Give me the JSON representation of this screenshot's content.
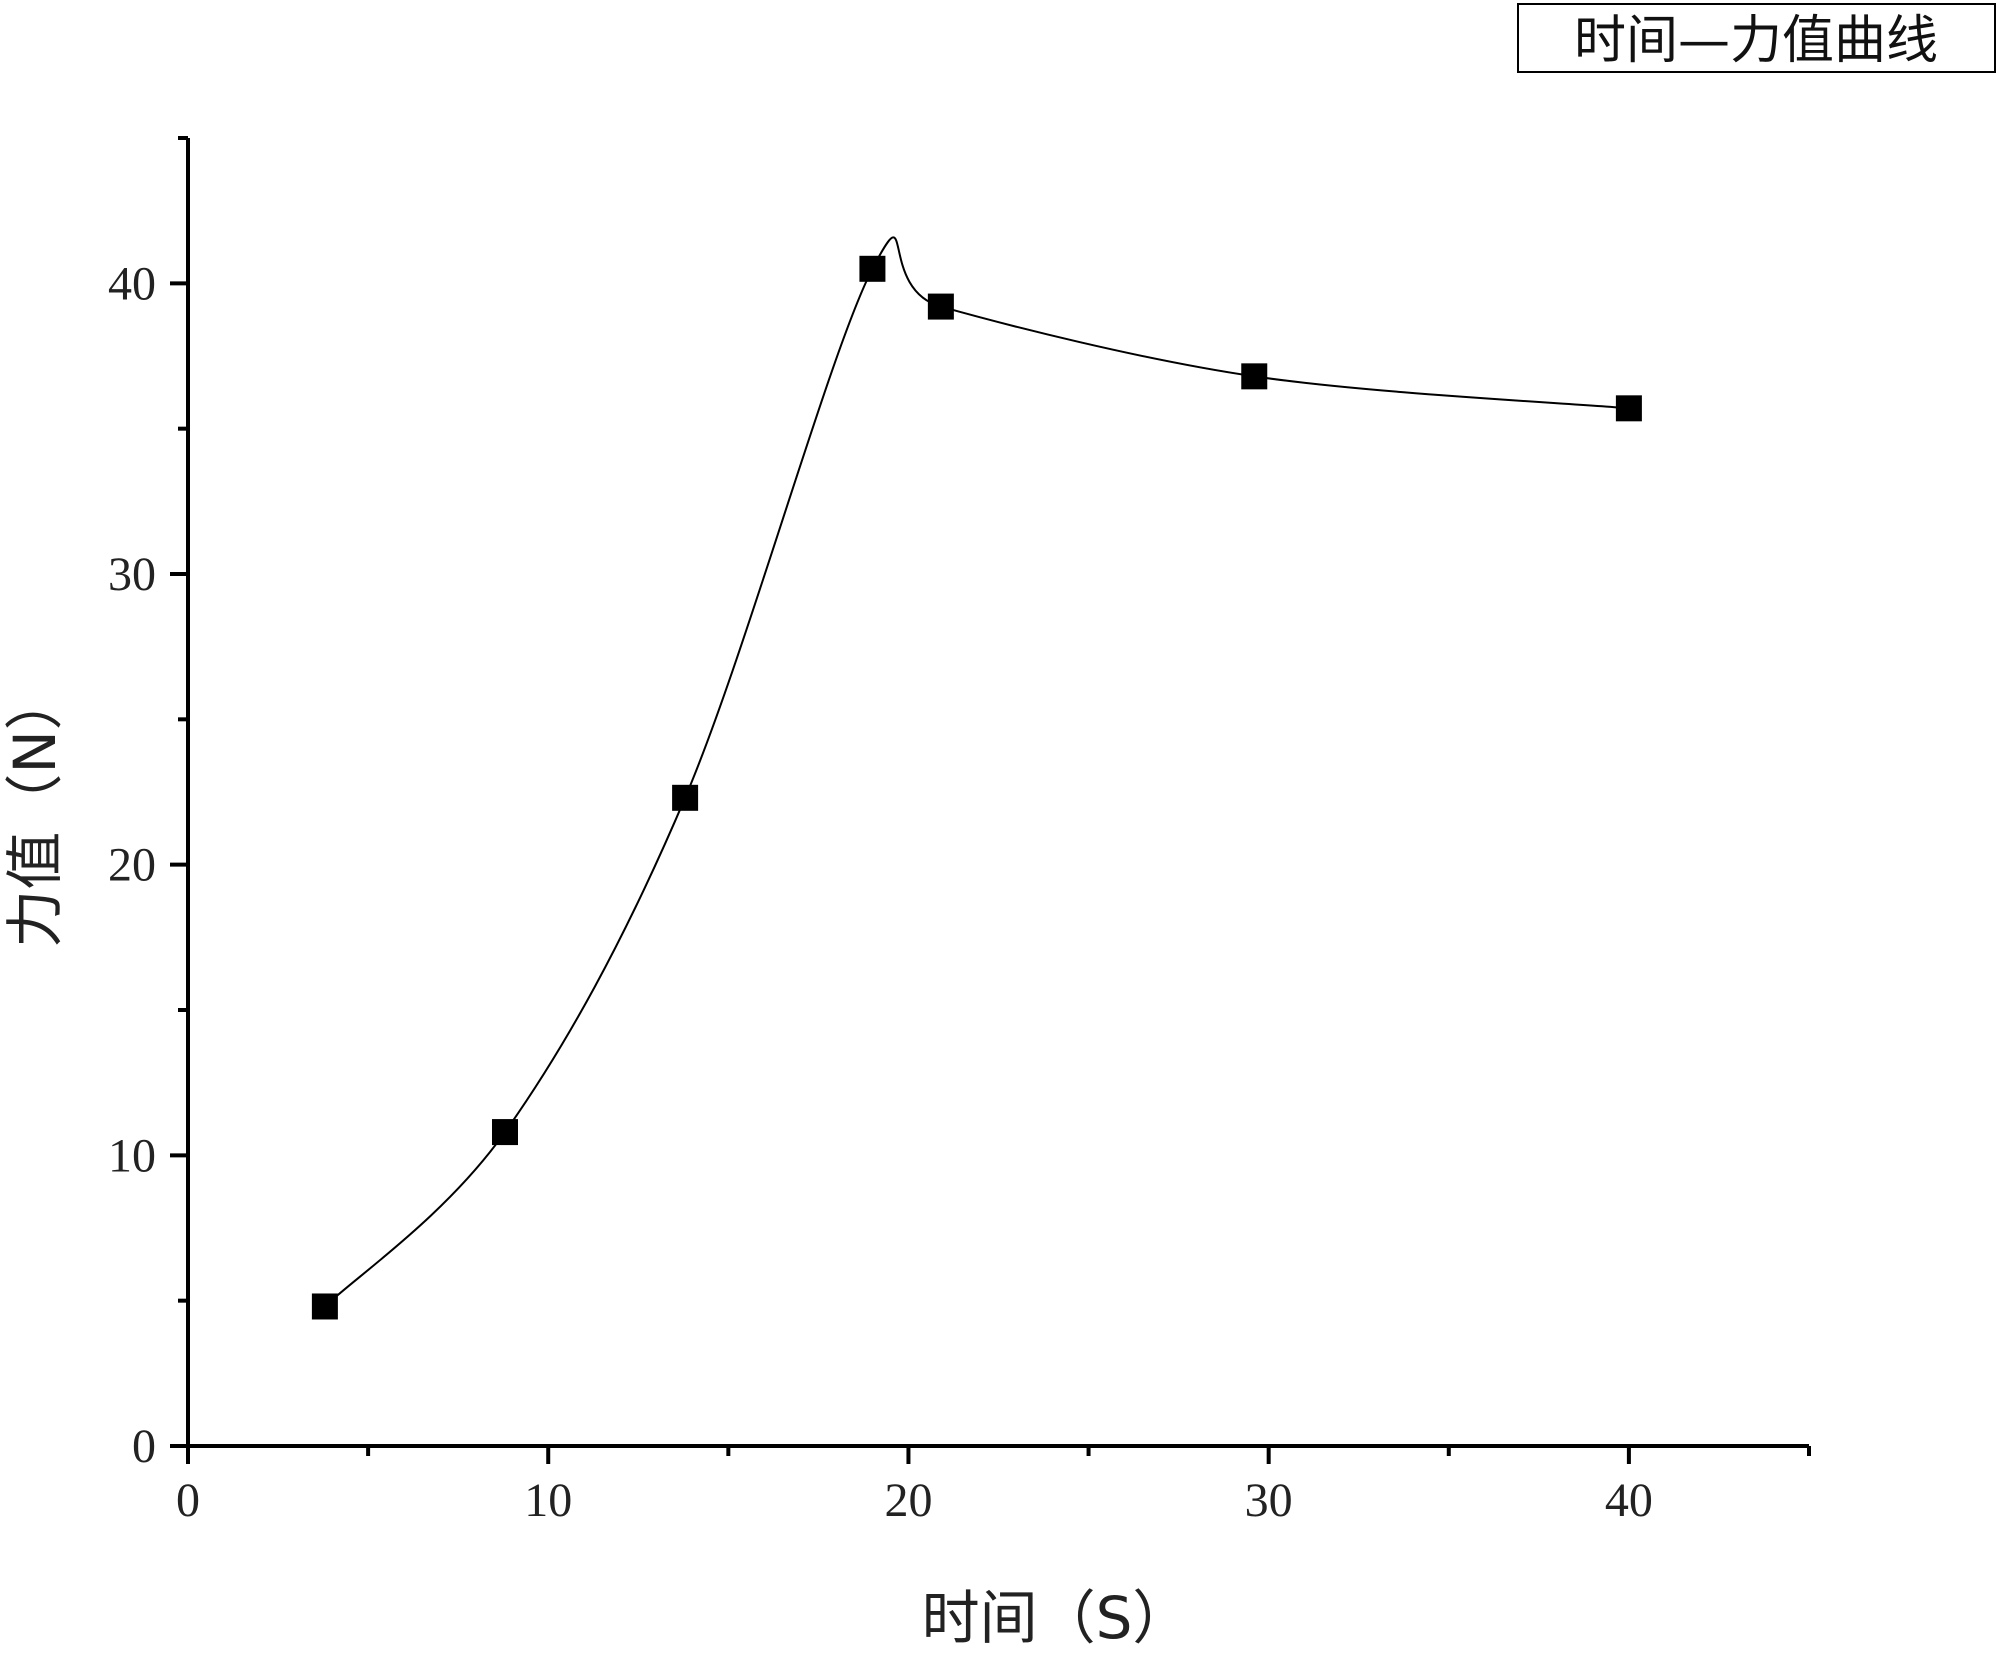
{
  "chart_data": {
    "type": "line",
    "title": "",
    "legend_text": "时间—力值曲线",
    "legend_position": "top-right",
    "xlabel": "时间（S）",
    "ylabel": "力值（N）",
    "xlim": [
      0,
      45
    ],
    "ylim": [
      0,
      45
    ],
    "x_major_ticks": [
      0,
      10,
      20,
      30,
      40
    ],
    "x_minor_ticks": [
      5,
      15,
      25,
      35,
      45
    ],
    "y_major_ticks": [
      0,
      10,
      20,
      30,
      40
    ],
    "y_minor_ticks": [
      5,
      15,
      25,
      35,
      45
    ],
    "x_tick_labels": [
      "0",
      "10",
      "20",
      "30",
      "40"
    ],
    "y_tick_labels": [
      "0",
      "10",
      "20",
      "30",
      "40"
    ],
    "grid": false,
    "marker": "square",
    "line_style": "smooth",
    "series": [
      {
        "x": [
          3.8,
          8.8,
          13.8,
          19.0,
          20.9,
          29.6,
          40.0
        ],
        "y": [
          4.8,
          10.8,
          22.3,
          40.5,
          39.2,
          36.8,
          35.7
        ]
      }
    ]
  }
}
